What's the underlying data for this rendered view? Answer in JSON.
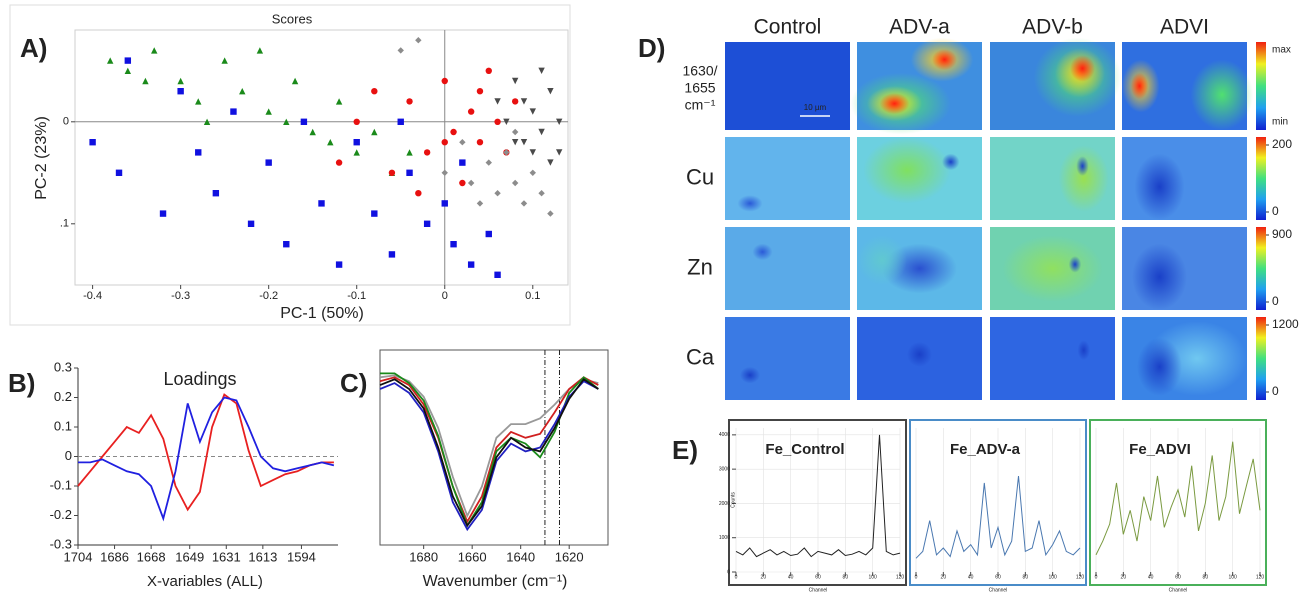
{
  "chart_data": [
    {
      "type": "scatter",
      "panel": "A)",
      "title": "Scores",
      "x_label": "PC-1 (50%)",
      "y_label": "PC-2 (23%)",
      "xlim": [
        -0.42,
        0.14
      ],
      "ylim": [
        -0.09,
        0.16
      ],
      "y_inverted": true,
      "xticks": [
        -0.4,
        -0.3,
        -0.2,
        -0.1,
        0,
        0.1
      ],
      "yticks": [
        0,
        {
          "value": 0.1,
          "label": ".1"
        }
      ],
      "zero_lines": true,
      "series": [
        {
          "color": "#1a8a1a",
          "marker": "triangle",
          "x": [
            -0.38,
            -0.36,
            -0.33,
            -0.3,
            -0.28,
            -0.25,
            -0.23,
            -0.21,
            -0.2,
            -0.18,
            -0.17,
            -0.15,
            -0.13,
            -0.12,
            -0.1,
            -0.08,
            -0.06,
            -0.04,
            -0.27,
            -0.34
          ],
          "y": [
            -0.06,
            -0.05,
            -0.07,
            -0.04,
            -0.02,
            -0.06,
            -0.03,
            -0.07,
            -0.01,
            0.0,
            -0.04,
            0.01,
            0.02,
            -0.02,
            0.03,
            0.01,
            0.05,
            0.03,
            0.0,
            -0.04
          ]
        },
        {
          "color": "#1010e0",
          "marker": "square",
          "x": [
            -0.4,
            -0.37,
            -0.36,
            -0.32,
            -0.3,
            -0.28,
            -0.26,
            -0.24,
            -0.22,
            -0.2,
            -0.18,
            -0.16,
            -0.14,
            -0.12,
            -0.1,
            -0.08,
            -0.06,
            -0.04,
            -0.02,
            0.0,
            0.01,
            0.03,
            0.05,
            0.02,
            -0.05,
            0.06
          ],
          "y": [
            0.02,
            0.05,
            -0.06,
            0.09,
            -0.03,
            0.03,
            0.07,
            -0.01,
            0.1,
            0.04,
            0.12,
            0.0,
            0.08,
            0.14,
            0.02,
            0.09,
            0.13,
            0.05,
            0.1,
            0.08,
            0.12,
            0.14,
            0.11,
            0.04,
            0.0,
            0.15
          ]
        },
        {
          "color": "#e81010",
          "marker": "circle",
          "x": [
            -0.12,
            -0.1,
            -0.08,
            -0.06,
            -0.04,
            -0.02,
            0.0,
            0.01,
            0.02,
            0.03,
            0.04,
            0.05,
            0.06,
            0.07,
            0.08,
            -0.03,
            0.0,
            0.04
          ],
          "y": [
            0.04,
            0.0,
            -0.03,
            0.05,
            -0.02,
            0.03,
            -0.04,
            0.01,
            0.06,
            -0.01,
            0.02,
            -0.05,
            0.0,
            0.03,
            -0.02,
            0.07,
            0.02,
            -0.03
          ]
        },
        {
          "color": "#8c8c8c",
          "marker": "diamond",
          "x": [
            0.0,
            0.02,
            0.03,
            0.05,
            0.06,
            0.07,
            0.08,
            0.09,
            0.1,
            0.11,
            0.12,
            0.04,
            -0.05,
            -0.03,
            0.08
          ],
          "y": [
            0.05,
            0.02,
            0.06,
            0.04,
            0.07,
            0.03,
            0.06,
            0.08,
            0.05,
            0.07,
            0.09,
            0.08,
            -0.07,
            -0.08,
            0.01
          ]
        },
        {
          "color": "#4a4a4a",
          "marker": "triangle-down",
          "x": [
            0.06,
            0.07,
            0.08,
            0.09,
            0.1,
            0.11,
            0.12,
            0.13,
            0.1,
            0.12,
            0.11,
            0.09,
            0.13,
            0.08
          ],
          "y": [
            -0.02,
            0.0,
            -0.04,
            0.02,
            -0.01,
            0.01,
            -0.03,
            0.0,
            0.03,
            0.04,
            -0.05,
            -0.02,
            0.03,
            0.02
          ]
        }
      ]
    },
    {
      "type": "line",
      "panel": "B)",
      "title": "Loadings",
      "x_label": "X-variables (ALL)",
      "xlim": [
        1704,
        1576
      ],
      "ylim": [
        -0.3,
        0.3
      ],
      "xticks": [
        1704,
        1686,
        1668,
        1649,
        1631,
        1613,
        1594
      ],
      "yticks": [
        -0.3,
        -0.2,
        -0.1,
        0,
        0.1,
        0.2,
        0.3
      ],
      "zero_lines": true,
      "axes": true,
      "x": [
        1704,
        1698,
        1692,
        1686,
        1680,
        1674,
        1668,
        1662,
        1656,
        1650,
        1644,
        1638,
        1632,
        1626,
        1620,
        1614,
        1608,
        1602,
        1596,
        1590,
        1584,
        1578
      ],
      "series": [
        {
          "color": "#e82020",
          "values": [
            -0.1,
            -0.05,
            0.0,
            0.05,
            0.1,
            0.08,
            0.14,
            0.06,
            -0.1,
            -0.18,
            -0.12,
            0.1,
            0.21,
            0.18,
            0.02,
            -0.1,
            -0.08,
            -0.06,
            -0.05,
            -0.03,
            -0.02,
            -0.02
          ]
        },
        {
          "color": "#2020e0",
          "values": [
            -0.02,
            -0.02,
            -0.01,
            -0.03,
            -0.05,
            -0.06,
            -0.1,
            -0.21,
            -0.05,
            0.18,
            0.05,
            0.15,
            0.2,
            0.19,
            0.1,
            0.0,
            -0.04,
            -0.05,
            -0.04,
            -0.03,
            -0.02,
            -0.03
          ]
        }
      ]
    },
    {
      "type": "line",
      "panel": "C)",
      "x_label": "Wavenumber (cm⁻¹)",
      "xlim": [
        1698,
        1604
      ],
      "ylim": [
        0,
        1
      ],
      "xticks": [
        1680,
        1660,
        1640,
        1620
      ],
      "vlines": [
        1630,
        1624
      ],
      "x": [
        1698,
        1692,
        1686,
        1680,
        1674,
        1668,
        1662,
        1656,
        1650,
        1644,
        1638,
        1632,
        1626,
        1620,
        1614,
        1608
      ],
      "series": [
        {
          "color": "#999999",
          "values": [
            0.86,
            0.87,
            0.84,
            0.76,
            0.6,
            0.35,
            0.15,
            0.3,
            0.55,
            0.62,
            0.62,
            0.65,
            0.72,
            0.8,
            0.85,
            0.83
          ]
        },
        {
          "color": "#d02020",
          "values": [
            0.84,
            0.86,
            0.82,
            0.72,
            0.55,
            0.3,
            0.12,
            0.25,
            0.5,
            0.58,
            0.55,
            0.57,
            0.68,
            0.8,
            0.86,
            0.82
          ]
        },
        {
          "color": "#1a8a1a",
          "values": [
            0.88,
            0.88,
            0.83,
            0.74,
            0.56,
            0.3,
            0.1,
            0.22,
            0.48,
            0.55,
            0.52,
            0.45,
            0.58,
            0.78,
            0.86,
            0.8
          ]
        },
        {
          "color": "#2020c0",
          "values": [
            0.8,
            0.83,
            0.78,
            0.68,
            0.48,
            0.22,
            0.08,
            0.18,
            0.43,
            0.52,
            0.48,
            0.5,
            0.62,
            0.76,
            0.84,
            0.8
          ]
        },
        {
          "color": "#111111",
          "values": [
            0.82,
            0.85,
            0.8,
            0.7,
            0.5,
            0.25,
            0.1,
            0.2,
            0.45,
            0.55,
            0.5,
            0.48,
            0.6,
            0.75,
            0.85,
            0.8
          ]
        }
      ]
    },
    {
      "type": "image_grid",
      "panel": "D)",
      "columns": [
        "Control",
        "ADV-a",
        "ADV-b",
        "ADVI"
      ],
      "rows": [
        [
          "1630/",
          "1655",
          "cm⁻¹"
        ],
        [
          "Cu"
        ],
        [
          "Zn"
        ],
        [
          "Ca"
        ]
      ],
      "colorbar_ticks": [
        [
          "max",
          "min"
        ],
        [
          200,
          0
        ],
        [
          900,
          0
        ],
        [
          1200,
          0
        ]
      ],
      "scale_bar": "10 µm"
    },
    {
      "type": "line",
      "panel": "E)",
      "title": "Fe_Control",
      "title_color": "#8a8a8a",
      "frame_color": "#444444",
      "x_label": "Channel",
      "y_label": "Counts",
      "grid": true,
      "xlim": [
        0,
        120
      ],
      "ylim": [
        0,
        4200
      ],
      "xticks": [
        0,
        20,
        40,
        60,
        80,
        100,
        120
      ],
      "yticks": [
        0,
        1000,
        2000,
        3000,
        4000
      ],
      "x": [
        0,
        5,
        10,
        15,
        20,
        25,
        30,
        35,
        40,
        45,
        50,
        55,
        60,
        65,
        70,
        75,
        80,
        85,
        90,
        95,
        100,
        105,
        110,
        115,
        120
      ],
      "series": [
        {
          "color": "#222222",
          "values": [
            600,
            500,
            700,
            450,
            550,
            650,
            500,
            600,
            480,
            520,
            700,
            450,
            600,
            550,
            500,
            650,
            480,
            520,
            600,
            500,
            700,
            4000,
            600,
            500,
            550
          ]
        }
      ]
    },
    {
      "type": "line",
      "title": "Fe_ADV-a",
      "title_color": "#2a6fb0",
      "frame_color": "#4a8cc8",
      "x_label": "Channel",
      "grid": true,
      "xlim": [
        0,
        120
      ],
      "ylim": [
        0,
        4200
      ],
      "xticks": [
        0,
        20,
        40,
        60,
        80,
        100,
        120
      ],
      "x": [
        0,
        5,
        10,
        15,
        20,
        25,
        30,
        35,
        40,
        45,
        50,
        55,
        60,
        65,
        70,
        75,
        80,
        85,
        90,
        95,
        100,
        105,
        110,
        115,
        120
      ],
      "series": [
        {
          "color": "#4a78b0",
          "values": [
            400,
            600,
            1500,
            500,
            700,
            450,
            1200,
            600,
            800,
            500,
            2600,
            700,
            1300,
            500,
            900,
            2800,
            600,
            700,
            1500,
            500,
            800,
            1200,
            600,
            500,
            700
          ]
        }
      ]
    },
    {
      "type": "line",
      "title": "Fe_ADVI",
      "title_color": "#2a9a3a",
      "frame_color": "#4ab05a",
      "x_label": "Channel",
      "grid": true,
      "xlim": [
        0,
        120
      ],
      "ylim": [
        0,
        4200
      ],
      "xticks": [
        0,
        20,
        40,
        60,
        80,
        100,
        120
      ],
      "x": [
        0,
        5,
        10,
        15,
        20,
        25,
        30,
        35,
        40,
        45,
        50,
        55,
        60,
        65,
        70,
        75,
        80,
        85,
        90,
        95,
        100,
        105,
        110,
        115,
        120
      ],
      "series": [
        {
          "color": "#7a9a40",
          "values": [
            500,
            900,
            1400,
            2600,
            1100,
            1800,
            900,
            2200,
            1500,
            2800,
            1300,
            1900,
            2400,
            1600,
            3100,
            1200,
            2000,
            3400,
            1500,
            2200,
            3800,
            1700,
            2500,
            3300,
            1800
          ]
        }
      ]
    }
  ]
}
